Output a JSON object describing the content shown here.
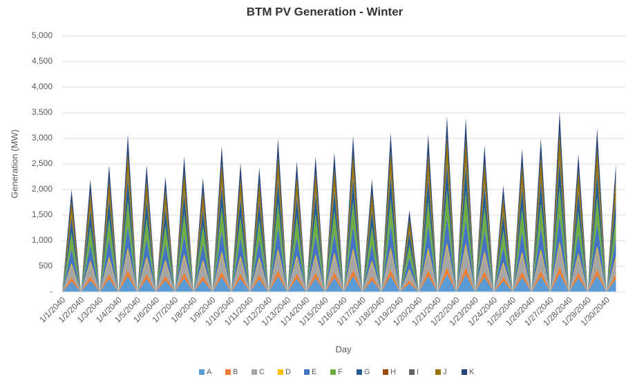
{
  "chart_data": {
    "type": "stacked_area",
    "title": "BTM PV Generation - Winter",
    "x_label": "Day",
    "y_label": "Generation (MW)",
    "categories": [
      "1/1/2040",
      null,
      "1/2/2040",
      null,
      "1/3/2040",
      null,
      "1/4/2040",
      null,
      "1/5/2040",
      null,
      "1/6/2040",
      null,
      "1/7/2040",
      null,
      "1/8/2040",
      null,
      "1/9/2040",
      null,
      "1/10/2040",
      null,
      "1/11/2040",
      null,
      "1/12/2040",
      null,
      "1/13/2040",
      null,
      "1/14/2040",
      null,
      "1/15/2040",
      null,
      "1/16/2040",
      null,
      "1/17/2040",
      null,
      "1/18/2040",
      null,
      "1/19/2040",
      null,
      "1/20/2040",
      null,
      "1/21/2040",
      null,
      "1/22/2040",
      null,
      "1/23/2040",
      null,
      "1/24/2040",
      null,
      "1/25/2040",
      null,
      "1/26/2040",
      null,
      "1/27/2040",
      null,
      "1/28/2040",
      null,
      "1/29/2040",
      null,
      "1/30/2040",
      null
    ],
    "series": [
      {
        "name": "A",
        "color": "#5b9bd5",
        "values": [
          0,
          200,
          0,
          220,
          0,
          248,
          0,
          308,
          0,
          248,
          0,
          225,
          0,
          265,
          0,
          223,
          0,
          285,
          0,
          252,
          0,
          243,
          0,
          300,
          0,
          255,
          0,
          265,
          0,
          273,
          0,
          305,
          0,
          220,
          0,
          312,
          0,
          160,
          0,
          308,
          0,
          343,
          0,
          340,
          0,
          287,
          0,
          208,
          0,
          280,
          0,
          300,
          0,
          353,
          0,
          270,
          0,
          320,
          0,
          250
        ]
      },
      {
        "name": "B",
        "color": "#ed7d31",
        "values": [
          0,
          80,
          0,
          88,
          0,
          99,
          0,
          123,
          0,
          99,
          0,
          90,
          0,
          106,
          0,
          89,
          0,
          114,
          0,
          101,
          0,
          97,
          0,
          120,
          0,
          102,
          0,
          106,
          0,
          109,
          0,
          122,
          0,
          88,
          0,
          125,
          0,
          64,
          0,
          123,
          0,
          137,
          0,
          136,
          0,
          115,
          0,
          83,
          0,
          112,
          0,
          120,
          0,
          141,
          0,
          108,
          0,
          128,
          0,
          100
        ]
      },
      {
        "name": "C",
        "color": "#a5a5a5",
        "values": [
          0,
          240,
          0,
          264,
          0,
          298,
          0,
          370,
          0,
          298,
          0,
          270,
          0,
          318,
          0,
          268,
          0,
          342,
          0,
          302,
          0,
          292,
          0,
          360,
          0,
          306,
          0,
          318,
          0,
          328,
          0,
          366,
          0,
          264,
          0,
          374,
          0,
          192,
          0,
          370,
          0,
          412,
          0,
          408,
          0,
          344,
          0,
          250,
          0,
          336,
          0,
          360,
          0,
          424,
          0,
          324,
          0,
          384,
          0,
          300
        ]
      },
      {
        "name": "D",
        "color": "#ffc000",
        "values": [
          0,
          40,
          0,
          44,
          0,
          50,
          0,
          62,
          0,
          50,
          0,
          45,
          0,
          53,
          0,
          45,
          0,
          57,
          0,
          50,
          0,
          49,
          0,
          60,
          0,
          51,
          0,
          53,
          0,
          55,
          0,
          61,
          0,
          44,
          0,
          62,
          0,
          32,
          0,
          62,
          0,
          69,
          0,
          68,
          0,
          57,
          0,
          42,
          0,
          56,
          0,
          60,
          0,
          71,
          0,
          54,
          0,
          64,
          0,
          50
        ]
      },
      {
        "name": "E",
        "color": "#4472c4",
        "values": [
          0,
          280,
          0,
          308,
          0,
          347,
          0,
          431,
          0,
          347,
          0,
          315,
          0,
          371,
          0,
          312,
          0,
          399,
          0,
          353,
          0,
          340,
          0,
          420,
          0,
          357,
          0,
          371,
          0,
          382,
          0,
          427,
          0,
          308,
          0,
          437,
          0,
          224,
          0,
          431,
          0,
          480,
          0,
          476,
          0,
          402,
          0,
          291,
          0,
          392,
          0,
          420,
          0,
          494,
          0,
          378,
          0,
          448,
          0,
          350
        ]
      },
      {
        "name": "F",
        "color": "#70ad47",
        "values": [
          0,
          320,
          0,
          352,
          0,
          397,
          0,
          493,
          0,
          397,
          0,
          360,
          0,
          424,
          0,
          357,
          0,
          456,
          0,
          403,
          0,
          389,
          0,
          480,
          0,
          408,
          0,
          424,
          0,
          437,
          0,
          488,
          0,
          352,
          0,
          499,
          0,
          256,
          0,
          493,
          0,
          549,
          0,
          544,
          0,
          459,
          0,
          333,
          0,
          448,
          0,
          480,
          0,
          565,
          0,
          432,
          0,
          512,
          0,
          400
        ]
      },
      {
        "name": "G",
        "color": "#255e91",
        "values": [
          0,
          280,
          0,
          308,
          0,
          347,
          0,
          431,
          0,
          347,
          0,
          315,
          0,
          371,
          0,
          312,
          0,
          399,
          0,
          353,
          0,
          340,
          0,
          420,
          0,
          357,
          0,
          371,
          0,
          382,
          0,
          427,
          0,
          308,
          0,
          437,
          0,
          224,
          0,
          431,
          0,
          480,
          0,
          476,
          0,
          402,
          0,
          291,
          0,
          392,
          0,
          420,
          0,
          494,
          0,
          378,
          0,
          448,
          0,
          350
        ]
      },
      {
        "name": "H",
        "color": "#9e480e",
        "values": [
          0,
          20,
          0,
          22,
          0,
          25,
          0,
          31,
          0,
          25,
          0,
          23,
          0,
          27,
          0,
          22,
          0,
          29,
          0,
          25,
          0,
          24,
          0,
          30,
          0,
          26,
          0,
          27,
          0,
          27,
          0,
          31,
          0,
          22,
          0,
          31,
          0,
          16,
          0,
          31,
          0,
          34,
          0,
          34,
          0,
          29,
          0,
          21,
          0,
          28,
          0,
          30,
          0,
          35,
          0,
          27,
          0,
          32,
          0,
          25
        ]
      },
      {
        "name": "I",
        "color": "#636363",
        "values": [
          0,
          40,
          0,
          44,
          0,
          50,
          0,
          62,
          0,
          50,
          0,
          45,
          0,
          53,
          0,
          45,
          0,
          57,
          0,
          50,
          0,
          49,
          0,
          60,
          0,
          51,
          0,
          53,
          0,
          55,
          0,
          61,
          0,
          44,
          0,
          62,
          0,
          32,
          0,
          62,
          0,
          69,
          0,
          68,
          0,
          57,
          0,
          42,
          0,
          56,
          0,
          60,
          0,
          71,
          0,
          54,
          0,
          64,
          0,
          50
        ]
      },
      {
        "name": "J",
        "color": "#997300",
        "values": [
          0,
          260,
          0,
          286,
          0,
          322,
          0,
          400,
          0,
          322,
          0,
          293,
          0,
          345,
          0,
          290,
          0,
          371,
          0,
          328,
          0,
          316,
          0,
          390,
          0,
          332,
          0,
          345,
          0,
          355,
          0,
          397,
          0,
          286,
          0,
          406,
          0,
          208,
          0,
          400,
          0,
          446,
          0,
          442,
          0,
          373,
          0,
          270,
          0,
          364,
          0,
          390,
          0,
          459,
          0,
          351,
          0,
          416,
          0,
          325
        ]
      },
      {
        "name": "K",
        "color": "#264478",
        "values": [
          0,
          240,
          0,
          264,
          0,
          298,
          0,
          370,
          0,
          298,
          0,
          270,
          0,
          318,
          0,
          268,
          0,
          342,
          0,
          302,
          0,
          292,
          0,
          360,
          0,
          306,
          0,
          318,
          0,
          328,
          0,
          366,
          0,
          264,
          0,
          374,
          0,
          192,
          0,
          370,
          0,
          412,
          0,
          408,
          0,
          344,
          0,
          250,
          0,
          336,
          0,
          360,
          0,
          424,
          0,
          324,
          0,
          384,
          0,
          300
        ]
      }
    ],
    "ylim": [
      0,
      5000
    ],
    "yticks": [
      {
        "value": 0,
        "label": "-"
      },
      500,
      {
        "value": 1000,
        "label": "1,000"
      },
      {
        "value": 1500,
        "label": "1,500"
      },
      {
        "value": 2000,
        "label": "2,000"
      },
      {
        "value": 2500,
        "label": "2,500"
      },
      {
        "value": 3000,
        "label": "3,000"
      },
      {
        "value": 3500,
        "label": "3,500"
      },
      {
        "value": 4000,
        "label": "4,000"
      },
      {
        "value": 4500,
        "label": "4,500"
      },
      {
        "value": 5000,
        "label": "5,000"
      }
    ],
    "grid": true,
    "legend": "bottom"
  }
}
